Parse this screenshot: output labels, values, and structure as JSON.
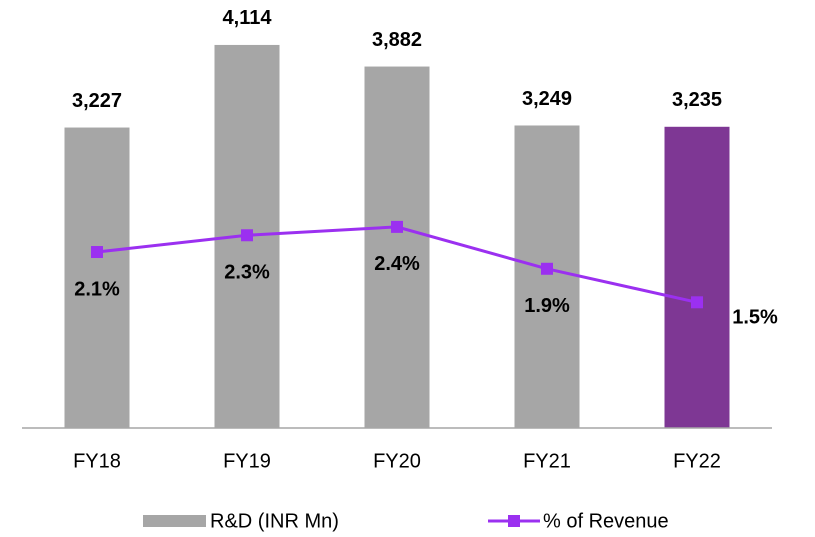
{
  "chart_data": {
    "type": "bar",
    "categories": [
      "FY18",
      "FY19",
      "FY20",
      "FY21",
      "FY22"
    ],
    "series": [
      {
        "name": "R&D (INR Mn)",
        "type": "bar",
        "color": "#a6a6a6",
        "colors": [
          "#a6a6a6",
          "#a6a6a6",
          "#a6a6a6",
          "#a6a6a6",
          "#7e3794"
        ],
        "values": [
          3227,
          4114,
          3882,
          3249,
          3235
        ],
        "value_labels": [
          "3,227",
          "4,114",
          "3,882",
          "3,249",
          "3,235"
        ]
      },
      {
        "name": "% of Revenue",
        "type": "line",
        "axis": "y2",
        "color": "#9b30f0",
        "values": [
          2.1,
          2.3,
          2.4,
          1.9,
          1.5
        ],
        "value_labels": [
          "2.1%",
          "2.3%",
          "2.4%",
          "1.9%",
          "1.5%"
        ]
      }
    ],
    "ylim": [
      0,
      4500
    ],
    "y2lim": [
      0,
      5
    ],
    "legend": "bottom"
  }
}
